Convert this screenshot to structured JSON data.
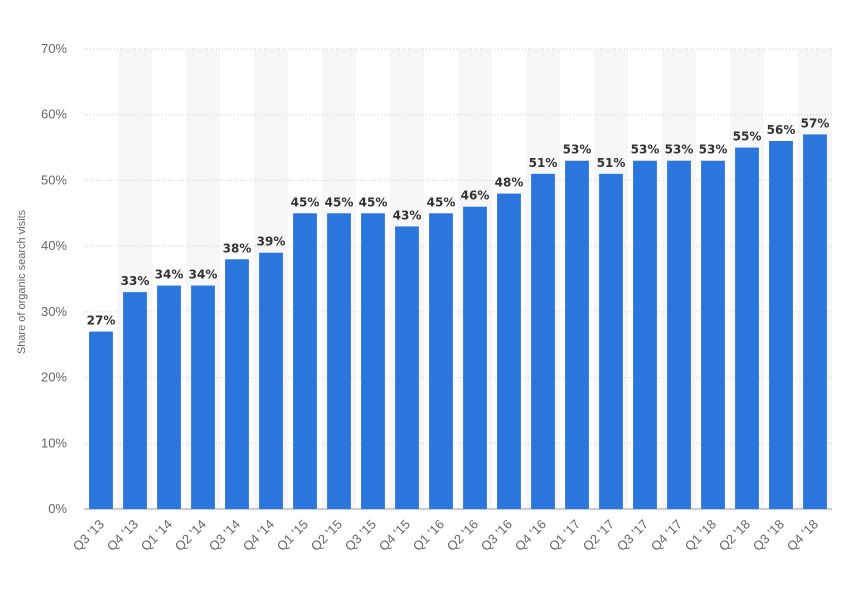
{
  "chart_data": {
    "type": "bar",
    "title": "",
    "xlabel": "",
    "ylabel": "Share of organic search visits",
    "ylim": [
      0,
      70
    ],
    "yticks": [
      0,
      10,
      20,
      30,
      40,
      50,
      60,
      70
    ],
    "ytick_suffix": "%",
    "grid": true,
    "bar_color": "#2a76dd",
    "categories": [
      "Q3 '13",
      "Q4 '13",
      "Q1 '14",
      "Q2 '14",
      "Q3 '14",
      "Q4 '14",
      "Q1 '15",
      "Q2 '15",
      "Q3 '15",
      "Q4 '15",
      "Q1 '16",
      "Q2 '16",
      "Q3 '16",
      "Q4 '16",
      "Q1 '17",
      "Q2 '17",
      "Q3 '17",
      "Q4 '17",
      "Q1 '18",
      "Q2 '18",
      "Q3 '18",
      "Q4 '18"
    ],
    "values": [
      27,
      33,
      34,
      34,
      38,
      39,
      45,
      45,
      45,
      43,
      45,
      46,
      48,
      51,
      53,
      51,
      53,
      53,
      53,
      55,
      56,
      57
    ],
    "data_labels": [
      "27%",
      "33%",
      "34%",
      "34%",
      "38%",
      "39%",
      "45%",
      "45%",
      "45%",
      "43%",
      "45%",
      "46%",
      "48%",
      "51%",
      "53%",
      "51%",
      "53%",
      "53%",
      "53%",
      "55%",
      "56%",
      "57%"
    ]
  }
}
